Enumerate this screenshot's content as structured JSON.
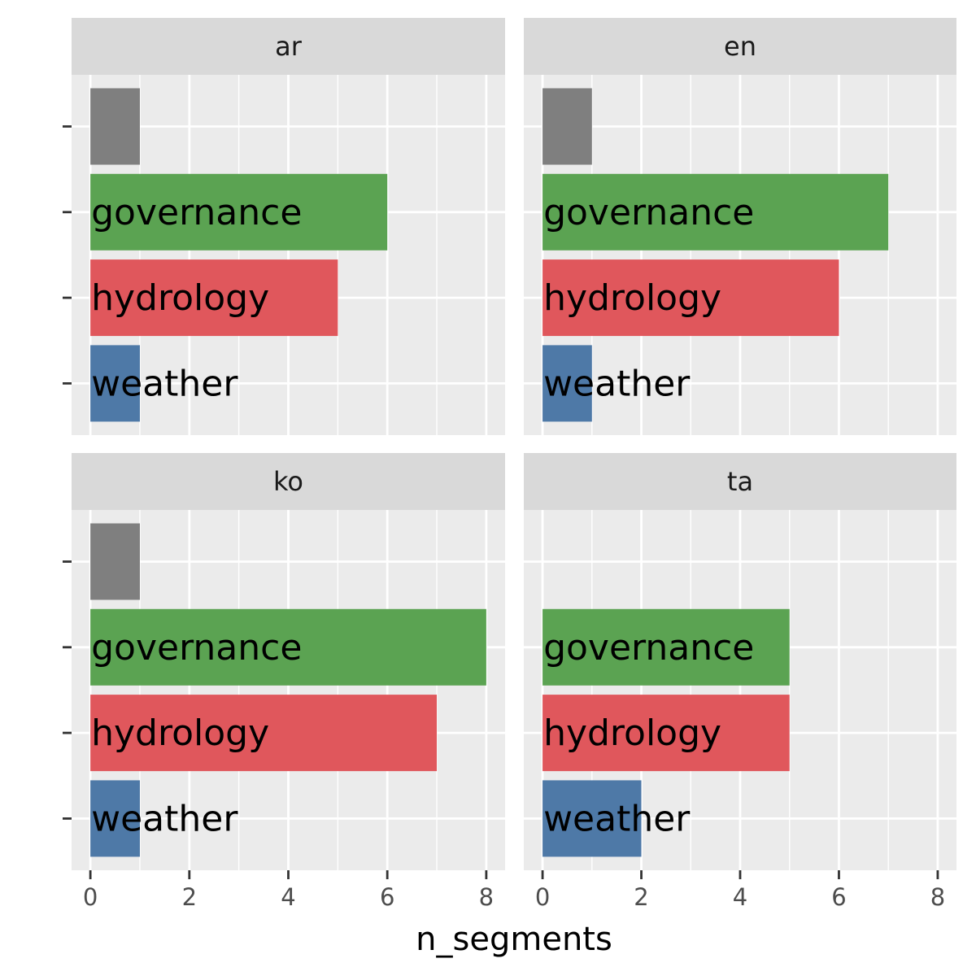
{
  "chart_data": {
    "type": "bar",
    "orientation": "horizontal",
    "facet_layout": "2x2",
    "xlabel": "n_segments",
    "ylabel": "",
    "xlim": [
      0,
      8.3
    ],
    "x_ticks": [
      0,
      2,
      4,
      6,
      8
    ],
    "grid": true,
    "categories": [
      "",
      "governance",
      "hydrology",
      "weather"
    ],
    "colors": {
      "": "#7f7f7f",
      "governance": "#5ba352",
      "hydrology": "#e0575c",
      "weather": "#4e79a7"
    },
    "facets": [
      {
        "title": "ar",
        "values": [
          1,
          6,
          5,
          1
        ]
      },
      {
        "title": "en",
        "values": [
          1,
          7,
          6,
          1
        ]
      },
      {
        "title": "ko",
        "values": [
          1,
          8,
          7,
          1
        ]
      },
      {
        "title": "ta",
        "values": [
          0,
          5,
          5,
          2
        ]
      }
    ]
  }
}
